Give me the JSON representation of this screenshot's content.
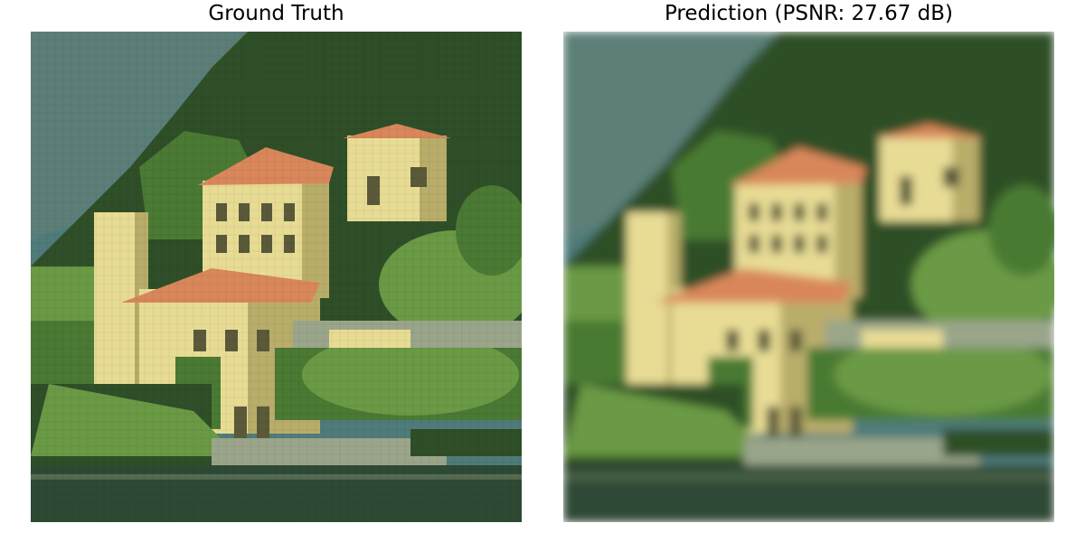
{
  "panels": [
    {
      "title": "Ground Truth"
    },
    {
      "title": "Prediction (PSNR: 27.67 dB)"
    }
  ],
  "colors": {
    "sky": "#4f7b7a",
    "mountain": "#5b7f78",
    "forest_dark": "#2f4f28",
    "forest_mid": "#4a7a33",
    "forest_light": "#6a9a45",
    "villa_wall": "#e8dc95",
    "villa_shadow": "#b9ad6a",
    "roof": "#d9875a",
    "window": "#5a5a3a",
    "lake": "#2e4a34",
    "stone_wall": "#9aa58a",
    "background": "#ffffff"
  }
}
